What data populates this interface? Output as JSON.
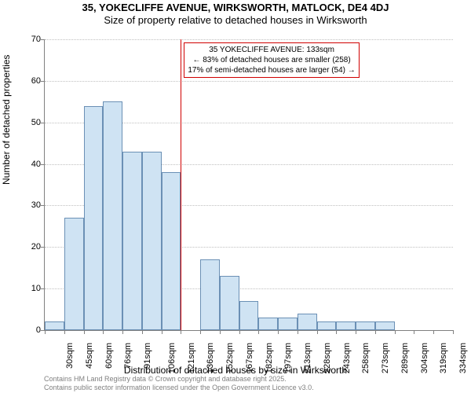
{
  "title": "35, YOKECLIFFE AVENUE, WIRKSWORTH, MATLOCK, DE4 4DJ",
  "subtitle": "Size of property relative to detached houses in Wirksworth",
  "y_axis_label": "Number of detached properties",
  "x_axis_label": "Distribution of detached houses by size in Wirksworth",
  "footer_line1": "Contains HM Land Registry data © Crown copyright and database right 2025.",
  "footer_line2": "Contains public sector information licensed under the Open Government Licence v3.0.",
  "chart": {
    "type": "histogram",
    "ylim": [
      0,
      70
    ],
    "ytick_step": 10,
    "yticks": [
      0,
      10,
      20,
      30,
      40,
      50,
      60,
      70
    ],
    "bar_fill": "#cfe3f3",
    "bar_border": "#6b90b5",
    "grid_color": "#c0c0c0",
    "axis_color": "#808080",
    "background_color": "#ffffff",
    "ref_line_color": "#d00000",
    "ref_line_x_index": 7,
    "categories": [
      "30sqm",
      "45sqm",
      "60sqm",
      "76sqm",
      "91sqm",
      "106sqm",
      "121sqm",
      "136sqm",
      "152sqm",
      "167sqm",
      "182sqm",
      "197sqm",
      "213sqm",
      "228sqm",
      "243sqm",
      "258sqm",
      "273sqm",
      "289sqm",
      "304sqm",
      "319sqm",
      "334sqm"
    ],
    "values": [
      2,
      27,
      54,
      55,
      43,
      43,
      38,
      0,
      17,
      13,
      7,
      3,
      3,
      4,
      2,
      2,
      2,
      2,
      0,
      0,
      0
    ]
  },
  "annotation": {
    "line1": "35 YOKECLIFFE AVENUE: 133sqm",
    "line2": "← 83% of detached houses are smaller (258)",
    "line3": "17% of semi-detached houses are larger (54) →"
  }
}
